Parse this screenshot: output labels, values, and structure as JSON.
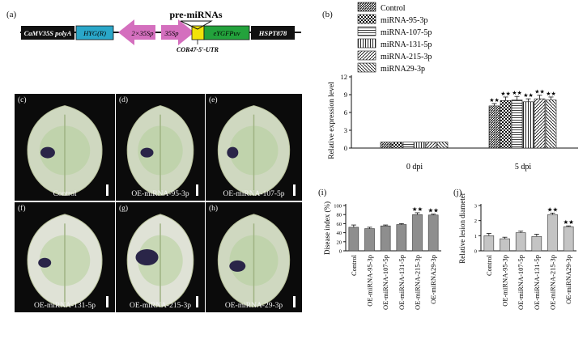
{
  "panel_a": {
    "label": "(a)",
    "title": "pre-miRNAs",
    "segments": [
      {
        "text": "CaMV35S polyA",
        "fill": "#111111",
        "text_color": "#ffffff"
      },
      {
        "text": "HYG(R)",
        "fill": "#2aa7c9",
        "text_color": "#111111"
      },
      {
        "text": "2×35Sp",
        "fill": "#d46fbe",
        "text_color": "#111111"
      },
      {
        "text": "35Sp",
        "fill": "#d46fbe",
        "text_color": "#111111"
      },
      {
        "text": "eYGFPuv",
        "fill": "#23a23c",
        "text_color": "#111111"
      },
      {
        "text": "HSPT878",
        "fill": "#111111",
        "text_color": "#ffffff"
      }
    ],
    "utr_label": "COR47-5'-UTR",
    "utr_color": "#f2e20a"
  },
  "panel_b": {
    "label": "(b)",
    "chart_data": {
      "type": "bar",
      "categories": [
        "0 dpi",
        "5 dpi"
      ],
      "ylabel": "Relative expression level",
      "ylim": [
        0,
        12
      ],
      "yticks": [
        "0",
        "3",
        "6",
        "9",
        "12"
      ],
      "legend_position": "top",
      "series": [
        {
          "name": "Control",
          "values": [
            1.0,
            7.1
          ],
          "errors": [
            0.05,
            0.4
          ],
          "sig": [
            "",
            "★★"
          ]
        },
        {
          "name": "miRNA-95-3p",
          "values": [
            1.0,
            8.0
          ],
          "errors": [
            0.05,
            0.6
          ],
          "sig": [
            "",
            "★★"
          ]
        },
        {
          "name": "miRNA-107-5p",
          "values": [
            1.0,
            8.1
          ],
          "errors": [
            0.05,
            0.6
          ],
          "sig": [
            "",
            "★★"
          ]
        },
        {
          "name": "miRNA-131-5p",
          "values": [
            1.0,
            7.8
          ],
          "errors": [
            0.05,
            0.5
          ],
          "sig": [
            "",
            "★★"
          ]
        },
        {
          "name": "miRNA-215-3p",
          "values": [
            1.0,
            8.3
          ],
          "errors": [
            0.05,
            0.6
          ],
          "sig": [
            "",
            "★★"
          ]
        },
        {
          "name": "miRNA29-3p",
          "values": [
            1.0,
            8.1
          ],
          "errors": [
            0.05,
            0.5
          ],
          "sig": [
            "",
            "★★"
          ]
        }
      ]
    }
  },
  "leaves": [
    {
      "panel": "(c)",
      "caption": "Control"
    },
    {
      "panel": "(d)",
      "caption": "OE-miRNA-95-3p"
    },
    {
      "panel": "(e)",
      "caption": "OE-miRNA-107-5p"
    },
    {
      "panel": "(f)",
      "caption": "OE-miRNA-131-5p"
    },
    {
      "panel": "(g)",
      "caption": "OE-miRNA-215-3p"
    },
    {
      "panel": "(h)",
      "caption": "OE-miRNA-29-3p"
    }
  ],
  "panel_i": {
    "label": "(i)",
    "chart_data": {
      "type": "bar",
      "ylabel": "Disease index (%)",
      "ylim": [
        0,
        100
      ],
      "yticks": [
        "0",
        "20",
        "40",
        "60",
        "80",
        "100"
      ],
      "categories": [
        "Control",
        "OE-miRNA-95-3p",
        "OE-miRNA-107-5p",
        "OE-miRNA-131-5p",
        "OE-miRNA-215-3p",
        "OE-miRNA29-3p"
      ],
      "values": [
        52,
        49,
        55,
        58,
        80,
        79
      ],
      "errors": [
        5,
        3,
        2,
        2,
        4,
        2
      ],
      "sig": [
        "",
        "",
        "",
        "",
        "★★",
        "★★"
      ],
      "bar_color": "#8e8e8e"
    }
  },
  "panel_j": {
    "label": "(j)",
    "chart_data": {
      "type": "bar",
      "ylabel": "Relative lesion diameter",
      "ylim": [
        0,
        3
      ],
      "yticks": [
        "0",
        "1",
        "2",
        "3"
      ],
      "categories": [
        "Control",
        "OE-miRNA-95-3p",
        "OE-miRNA-107-5p",
        "OE-miRNA-131-5p",
        "OE-miRNA-215-3p",
        "OE-miRNA29-3p"
      ],
      "values": [
        1.0,
        0.8,
        1.2,
        0.95,
        2.4,
        1.6
      ],
      "errors": [
        0.15,
        0.1,
        0.1,
        0.15,
        0.1,
        0.05
      ],
      "sig": [
        "",
        "",
        "",
        "",
        "★★",
        "★★"
      ],
      "bar_color": "#c4c4c4"
    }
  }
}
